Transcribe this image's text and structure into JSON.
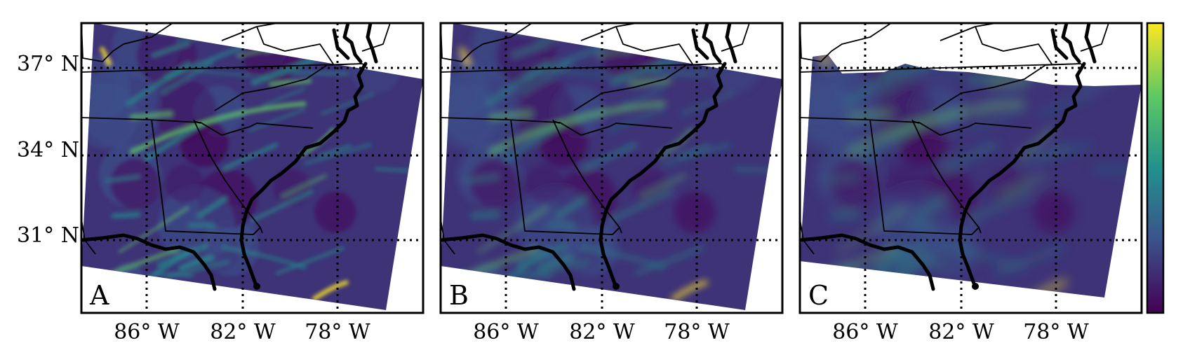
{
  "figure": {
    "panels": [
      {
        "label": "A",
        "field_variant": 0
      },
      {
        "label": "B",
        "field_variant": 1
      },
      {
        "label": "C",
        "field_variant": 2
      }
    ],
    "latitude_labels": [
      "37° N",
      "34° N",
      "31° N"
    ],
    "longitude_labels": [
      "86° W",
      "82° W",
      "78° W"
    ],
    "colorbar": {
      "colormap": "viridis",
      "stops": [
        "#440154",
        "#3b528b",
        "#21918c",
        "#5ec962",
        "#fde725"
      ],
      "tick_labels": "none"
    }
  },
  "chart_data": {
    "type": "heatmap",
    "title": "",
    "projection": "rotated swath over the southeastern United States",
    "latitude_gridlines": [
      37,
      34,
      31
    ],
    "longitude_gridlines": [
      -86,
      -82,
      -78
    ],
    "colormap": "viridis",
    "panels": [
      {
        "label": "A",
        "description": "fine-scale field, highest values near Atlantic coastal front and southeast corner"
      },
      {
        "label": "B",
        "description": "field similar to A with slightly smoother structures"
      },
      {
        "label": "C",
        "description": "smoother field with truncated northern edge"
      }
    ]
  }
}
